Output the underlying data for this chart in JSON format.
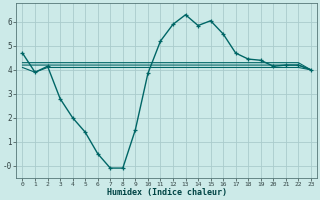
{
  "xlabel": "Humidex (Indice chaleur)",
  "bg_color": "#cceae8",
  "grid_color": "#aacccc",
  "line_color": "#006666",
  "xlim": [
    -0.5,
    23.5
  ],
  "ylim": [
    -0.5,
    6.8
  ],
  "yticks": [
    0,
    1,
    2,
    3,
    4,
    5,
    6
  ],
  "ytick_labels": [
    "-0",
    "1",
    "2",
    "3",
    "4",
    "5",
    "6"
  ],
  "xticks": [
    0,
    1,
    2,
    3,
    4,
    5,
    6,
    7,
    8,
    9,
    10,
    11,
    12,
    13,
    14,
    15,
    16,
    17,
    18,
    19,
    20,
    21,
    22,
    23
  ],
  "curve1_x": [
    0,
    1,
    2,
    3,
    4,
    5,
    6,
    7,
    8,
    9,
    10,
    11,
    12,
    13,
    14,
    15,
    16,
    17,
    18,
    19,
    20,
    21,
    22,
    23
  ],
  "curve1_y": [
    4.7,
    3.9,
    4.15,
    2.8,
    2.0,
    1.4,
    0.5,
    -0.1,
    -0.1,
    1.5,
    3.85,
    5.2,
    5.9,
    6.3,
    5.85,
    6.05,
    5.5,
    4.7,
    4.45,
    4.4,
    4.15,
    4.2,
    4.2,
    4.0
  ],
  "curve2_x": [
    0,
    1,
    2,
    3,
    4,
    5,
    6,
    7,
    8,
    9,
    10,
    11,
    12,
    13,
    14,
    15,
    16,
    17,
    18,
    19,
    20,
    21,
    22,
    23
  ],
  "curve2_y": [
    4.1,
    3.9,
    4.1,
    4.1,
    4.1,
    4.1,
    4.1,
    4.1,
    4.1,
    4.1,
    4.1,
    4.1,
    4.1,
    4.1,
    4.1,
    4.1,
    4.1,
    4.1,
    4.1,
    4.1,
    4.1,
    4.1,
    4.1,
    4.0
  ],
  "curve3_x": [
    0,
    1,
    2,
    3,
    4,
    5,
    6,
    7,
    8,
    9,
    10,
    11,
    12,
    13,
    14,
    15,
    16,
    17,
    18,
    19,
    20,
    21,
    22,
    23
  ],
  "curve3_y": [
    4.2,
    4.2,
    4.2,
    4.2,
    4.2,
    4.2,
    4.2,
    4.2,
    4.2,
    4.2,
    4.2,
    4.2,
    4.2,
    4.2,
    4.2,
    4.2,
    4.2,
    4.2,
    4.2,
    4.2,
    4.2,
    4.2,
    4.2,
    4.0
  ],
  "curve4_x": [
    0,
    1,
    2,
    3,
    4,
    5,
    6,
    7,
    8,
    9,
    10,
    11,
    12,
    13,
    14,
    15,
    16,
    17,
    18,
    19,
    20,
    21,
    22,
    23
  ],
  "curve4_y": [
    4.3,
    4.3,
    4.3,
    4.3,
    4.3,
    4.3,
    4.3,
    4.3,
    4.3,
    4.3,
    4.3,
    4.3,
    4.3,
    4.3,
    4.3,
    4.3,
    4.3,
    4.3,
    4.3,
    4.3,
    4.3,
    4.3,
    4.3,
    4.0
  ]
}
